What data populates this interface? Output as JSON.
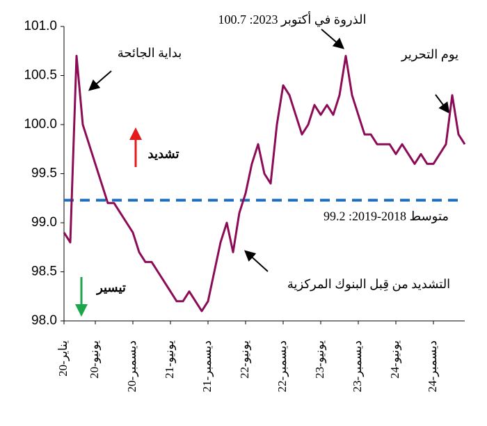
{
  "chart_data": {
    "type": "line",
    "categories": [
      "يناير-20",
      null,
      null,
      null,
      null,
      "يونيو-20",
      null,
      null,
      null,
      null,
      null,
      "ديسمبر-20",
      null,
      null,
      null,
      null,
      null,
      "يونيو-21",
      null,
      null,
      null,
      null,
      null,
      "ديسمبر-21",
      null,
      null,
      null,
      null,
      null,
      "يونيو-22",
      null,
      null,
      null,
      null,
      null,
      "ديسمبر-22",
      null,
      null,
      null,
      null,
      null,
      "يونيو-23",
      null,
      null,
      null,
      null,
      null,
      "ديسمبر-23",
      null,
      null,
      null,
      null,
      null,
      "يونيو-24",
      null,
      null,
      null,
      null,
      null,
      "ديسمبر-24",
      null,
      null,
      null,
      null,
      null
    ],
    "series": [
      {
        "color": "#8b0b57",
        "values": [
          98.9,
          98.8,
          100.7,
          100.0,
          99.8,
          99.6,
          99.4,
          99.2,
          99.2,
          99.1,
          99.0,
          98.9,
          98.7,
          98.6,
          98.6,
          98.5,
          98.4,
          98.3,
          98.2,
          98.2,
          98.3,
          98.2,
          98.1,
          98.2,
          98.5,
          98.8,
          99.0,
          98.7,
          99.1,
          99.3,
          99.6,
          99.8,
          99.5,
          99.4,
          100.0,
          100.4,
          100.3,
          100.1,
          99.9,
          100.0,
          100.2,
          100.1,
          100.2,
          100.1,
          100.3,
          100.7,
          100.3,
          100.1,
          99.9,
          99.9,
          99.8,
          99.8,
          99.8,
          99.7,
          99.8,
          99.7,
          99.6,
          99.7,
          99.6,
          99.6,
          99.7,
          99.8,
          100.3,
          99.9,
          99.8
        ]
      }
    ],
    "ylim": [
      98,
      101
    ],
    "yticks": [
      {
        "value": 98,
        "label": "98.0"
      },
      {
        "value": 98.5,
        "label": "98.5"
      },
      {
        "value": 99,
        "label": "99.0"
      },
      {
        "value": 99.5,
        "label": "99.5"
      },
      {
        "value": 100,
        "label": "100.0"
      },
      {
        "value": 100.5,
        "label": "100.5"
      },
      {
        "value": 101,
        "label": "101.0"
      }
    ],
    "reference_line": {
      "value": 99.23,
      "label": "متوسط 2018-2019: 99.2",
      "color": "#1f6fc0"
    },
    "annotations": [
      "بداية الجائحة",
      "الذروة في أكتوبر 2023: 100.7",
      "يوم التحرير",
      "تشديد",
      "تيسير",
      "التشديد من قِبل البنوك المركزية"
    ],
    "grid": false
  }
}
